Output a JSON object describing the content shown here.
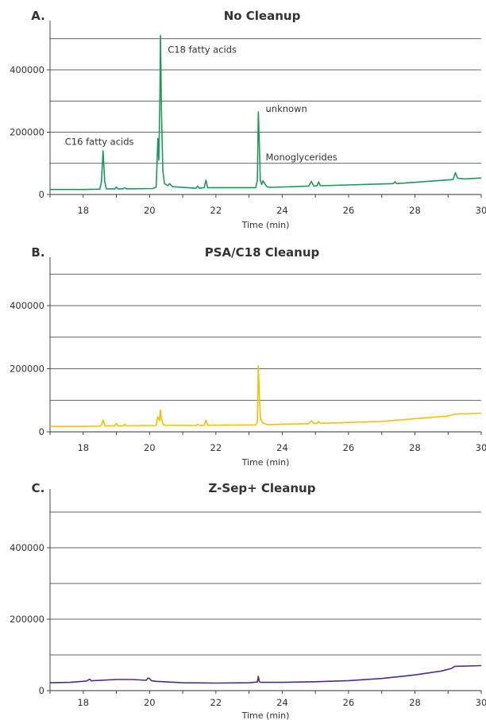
{
  "chart_data": [
    {
      "type": "line",
      "panel_letter": "A.",
      "title": "No Cleanup",
      "xlabel": "Time (min)",
      "ylabel": "",
      "xlim": [
        17,
        30
      ],
      "ylim": [
        0,
        520000
      ],
      "xticks": [
        "18",
        "20",
        "22",
        "24",
        "26",
        "28",
        "30"
      ],
      "yticks": [
        "0",
        "200000",
        "400000"
      ],
      "grid": true,
      "series": [
        {
          "color": "#1a9a5a",
          "x": [
            17.0,
            18.0,
            18.5,
            18.55,
            18.6,
            18.65,
            18.7,
            18.95,
            19.0,
            19.05,
            19.2,
            19.25,
            19.3,
            20.1,
            20.2,
            20.25,
            20.28,
            20.31,
            20.33,
            20.36,
            20.4,
            20.45,
            20.55,
            20.6,
            20.7,
            21.4,
            21.45,
            21.5,
            21.65,
            21.7,
            21.75,
            23.2,
            23.25,
            23.28,
            23.31,
            23.34,
            23.38,
            23.42,
            23.5,
            23.55,
            23.7,
            24.8,
            24.88,
            24.95,
            25.05,
            25.1,
            25.15,
            27.35,
            27.4,
            27.45,
            29.15,
            29.22,
            29.29,
            29.5,
            30.0
          ],
          "y": [
            16000,
            16000,
            17000,
            40000,
            140000,
            40000,
            18000,
            18000,
            24000,
            18000,
            18000,
            22000,
            18000,
            19000,
            24000,
            180000,
            110000,
            300000,
            510000,
            270000,
            80000,
            35000,
            28000,
            35000,
            25000,
            20000,
            27000,
            20000,
            22000,
            46000,
            22000,
            22000,
            45000,
            265000,
            160000,
            45000,
            32000,
            44000,
            30000,
            24000,
            23000,
            27000,
            42000,
            27000,
            28000,
            40000,
            28000,
            35000,
            41000,
            35000,
            48000,
            70000,
            52000,
            50000,
            53000
          ]
        }
      ],
      "annotations": [
        {
          "text": "C18 fatty acids",
          "x": 20.55,
          "y": 465000
        },
        {
          "text": "C16 fatty acids",
          "x": 17.45,
          "y": 170000
        },
        {
          "text": "unknown",
          "x": 23.5,
          "y": 275000
        },
        {
          "text": "Monoglycerides",
          "x": 23.5,
          "y": 120000
        }
      ]
    },
    {
      "type": "line",
      "panel_letter": "B.",
      "title": "PSA/C18 Cleanup",
      "xlabel": "Time (min)",
      "ylabel": "",
      "xlim": [
        17,
        30
      ],
      "ylim": [
        0,
        520000
      ],
      "xticks": [
        "18",
        "20",
        "22",
        "24",
        "26",
        "28",
        "30"
      ],
      "yticks": [
        "0",
        "200000",
        "400000"
      ],
      "grid": true,
      "series": [
        {
          "color": "#f5c000",
          "x": [
            17.0,
            18.0,
            18.5,
            18.55,
            18.6,
            18.65,
            18.95,
            19.0,
            19.05,
            19.2,
            19.25,
            19.3,
            20.2,
            20.25,
            20.3,
            20.33,
            20.36,
            20.42,
            20.5,
            21.4,
            21.45,
            21.5,
            21.65,
            21.7,
            21.75,
            23.2,
            23.25,
            23.28,
            23.31,
            23.35,
            23.42,
            23.55,
            24.8,
            24.88,
            24.95,
            25.05,
            25.1,
            25.15,
            27.0,
            29.0,
            29.2,
            30.0
          ],
          "y": [
            17000,
            17000,
            18000,
            22000,
            38000,
            19000,
            19000,
            27000,
            19000,
            19000,
            24000,
            19000,
            20000,
            48000,
            35000,
            70000,
            40000,
            22000,
            21000,
            20000,
            24000,
            20000,
            21000,
            37000,
            21000,
            22000,
            30000,
            210000,
            110000,
            40000,
            28000,
            23000,
            26000,
            35000,
            27000,
            27000,
            33000,
            27000,
            33000,
            50000,
            56000,
            59000
          ]
        }
      ],
      "annotations": []
    },
    {
      "type": "line",
      "panel_letter": "C.",
      "title": "Z-Sep+ Cleanup",
      "xlabel": "Time (min)",
      "ylabel": "",
      "xlim": [
        17,
        30
      ],
      "ylim": [
        0,
        520000
      ],
      "xticks": [
        "18",
        "20",
        "22",
        "24",
        "26",
        "28",
        "30"
      ],
      "yticks": [
        "0",
        "200000",
        "400000"
      ],
      "grid": true,
      "series": [
        {
          "color": "#4b2c8f",
          "x": [
            17.0,
            17.6,
            18.1,
            18.2,
            18.25,
            18.3,
            19.0,
            19.5,
            19.9,
            19.95,
            20.0,
            20.05,
            20.2,
            21.0,
            22.0,
            23.0,
            23.25,
            23.28,
            23.31,
            23.36,
            24.0,
            25.0,
            26.0,
            27.0,
            28.0,
            28.8,
            29.1,
            29.2,
            30.0
          ],
          "y": [
            22000,
            23000,
            27000,
            32000,
            27000,
            28000,
            31000,
            31000,
            29000,
            35000,
            34000,
            28000,
            26000,
            22000,
            21000,
            22000,
            24000,
            40000,
            25000,
            23000,
            23000,
            25000,
            28000,
            34000,
            44000,
            55000,
            62000,
            68000,
            70000
          ]
        }
      ],
      "annotations": []
    }
  ]
}
